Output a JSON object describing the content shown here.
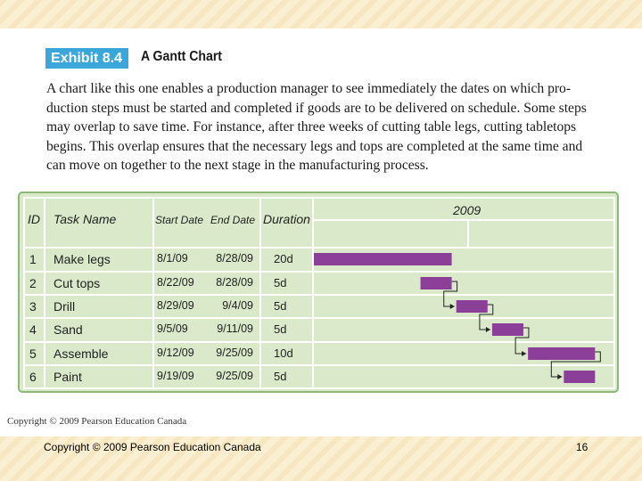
{
  "exhibit": {
    "badge": "Exhibit 8.4",
    "title": "A Gantt Chart"
  },
  "description_lines": [
    "A chart like this one enables a production manager to see immediately the dates on which pro-",
    "duction steps must be started and completed if goods are to be delivered on schedule. Some steps",
    "may overlap to save time. For instance, after three weeks of cutting table legs, cutting tabletops",
    "begins. This overlap ensures that the necessary legs and tops are completed at the same time and",
    "can move on together to the next stage in the manufacturing process."
  ],
  "chart_data": {
    "type": "gantt",
    "timeline_label": "2009",
    "headers": {
      "id": "ID",
      "task": "Task Name",
      "start": "Start Date",
      "end": "End Date",
      "duration": "Duration"
    },
    "tasks": [
      {
        "id": "1",
        "name": "Make legs",
        "start": "8/1/09",
        "end": "8/28/09",
        "duration": "20d"
      },
      {
        "id": "2",
        "name": "Cut tops",
        "start": "8/22/09",
        "end": "8/28/09",
        "duration": "5d"
      },
      {
        "id": "3",
        "name": "Drill",
        "start": "8/29/09",
        "end": "9/4/09",
        "duration": "5d"
      },
      {
        "id": "4",
        "name": "Sand",
        "start": "9/5/09",
        "end": "9/11/09",
        "duration": "5d"
      },
      {
        "id": "5",
        "name": "Assemble",
        "start": "9/12/09",
        "end": "9/25/09",
        "duration": "10d"
      },
      {
        "id": "6",
        "name": "Paint",
        "start": "9/19/09",
        "end": "9/25/09",
        "duration": "5d"
      }
    ],
    "bar_color": "#8b3f98"
  },
  "copyright_small": "Copyright © 2009 Pearson Education Canada",
  "footer": {
    "copyright": "Copyright © 2009 Pearson Education Canada",
    "page": "16"
  }
}
